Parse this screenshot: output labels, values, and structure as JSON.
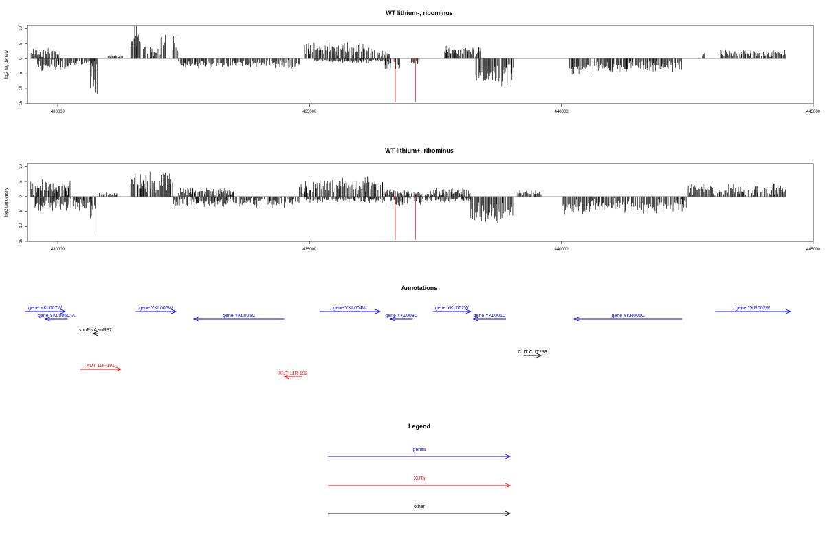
{
  "chart_data": [
    {
      "type": "bar",
      "title": "WT lithium-, ribominus",
      "xlabel": "",
      "ylabel": "log2 tag density",
      "xlim": [
        429400,
        445000
      ],
      "ylim": [
        -15,
        11
      ],
      "xticks": [
        430000,
        435000,
        440000,
        445000
      ],
      "yticks": [
        10,
        5,
        0,
        -5,
        -10,
        -15
      ],
      "grid": false,
      "baseline_color": "#888888",
      "bar_color": "#000000",
      "highlight_color": "#b22222",
      "segments": [
        {
          "x0": 429450,
          "x1": 430050,
          "y": 2.5,
          "strand": 1,
          "var": 1.0
        },
        {
          "x0": 429600,
          "x1": 430300,
          "y": -2.8,
          "strand": -1,
          "var": 1.2
        },
        {
          "x0": 430300,
          "x1": 430750,
          "y": -1.8,
          "strand": -1,
          "var": 0.8
        },
        {
          "x0": 430650,
          "x1": 430800,
          "y": -10.5,
          "strand": -1,
          "var": 3.0
        },
        {
          "x0": 431000,
          "x1": 431300,
          "y": 1.0,
          "strand": 1,
          "var": 0.5
        },
        {
          "x0": 431450,
          "x1": 431650,
          "y": 8.0,
          "strand": 1,
          "var": 1.5
        },
        {
          "x0": 431700,
          "x1": 432050,
          "y": 3.2,
          "strand": 1,
          "var": 1.0
        },
        {
          "x0": 432050,
          "x1": 432200,
          "y": 7.5,
          "strand": 1,
          "var": 2.0
        },
        {
          "x0": 432250,
          "x1": 432400,
          "y": 6.8,
          "strand": 1,
          "var": 1.2
        },
        {
          "x0": 432400,
          "x1": 434800,
          "y": -2.2,
          "strand": -1,
          "var": 1.0
        },
        {
          "x0": 434900,
          "x1": 436300,
          "y": 3.8,
          "strand": 1,
          "var": 1.2
        },
        {
          "x0": 435100,
          "x1": 436500,
          "y": -1.0,
          "strand": -1,
          "var": 0.6
        },
        {
          "x0": 436350,
          "x1": 436600,
          "y": 2.0,
          "strand": 1,
          "var": 0.6
        },
        {
          "x0": 436500,
          "x1": 436800,
          "y": -2.5,
          "strand": -1,
          "var": 1.0
        },
        {
          "x0": 437000,
          "x1": 437200,
          "y": -1.5,
          "strand": -1,
          "var": 0.6
        },
        {
          "x0": 437650,
          "x1": 438400,
          "y": 2.8,
          "strand": 1,
          "var": 1.0
        },
        {
          "x0": 438300,
          "x1": 439050,
          "y": -6.5,
          "strand": -1,
          "var": 1.5
        },
        {
          "x0": 440150,
          "x1": 442400,
          "y": -3.5,
          "strand": -1,
          "var": 1.2
        },
        {
          "x0": 442800,
          "x1": 442850,
          "y": 2.5,
          "strand": 1,
          "var": 0.3
        },
        {
          "x0": 443150,
          "x1": 444450,
          "y": 2.0,
          "strand": 1,
          "var": 1.0
        }
      ],
      "highlights": [
        {
          "x": 436700,
          "y": -14.5
        },
        {
          "x": 437100,
          "y": -14.5
        }
      ]
    },
    {
      "type": "bar",
      "title": "WT lithium+, ribominus",
      "xlabel": "",
      "ylabel": "log2 tag density",
      "xlim": [
        429400,
        445000
      ],
      "ylim": [
        -15,
        11
      ],
      "xticks": [
        430000,
        435000,
        440000,
        445000
      ],
      "yticks": [
        10,
        5,
        0,
        -5,
        -10,
        -15
      ],
      "grid": false,
      "baseline_color": "#888888",
      "bar_color": "#000000",
      "highlight_color": "#b22222",
      "segments": [
        {
          "x0": 429450,
          "x1": 430250,
          "y": 3.8,
          "strand": 1,
          "var": 1.5
        },
        {
          "x0": 429550,
          "x1": 430700,
          "y": -3.2,
          "strand": -1,
          "var": 1.5
        },
        {
          "x0": 430650,
          "x1": 430800,
          "y": -11.0,
          "strand": -1,
          "var": 3.0
        },
        {
          "x0": 430800,
          "x1": 431200,
          "y": 1.0,
          "strand": 1,
          "var": 0.5
        },
        {
          "x0": 431450,
          "x1": 432300,
          "y": 6.0,
          "strand": 1,
          "var": 2.0
        },
        {
          "x0": 432300,
          "x1": 434800,
          "y": -2.5,
          "strand": -1,
          "var": 1.2
        },
        {
          "x0": 432400,
          "x1": 433500,
          "y": 2.0,
          "strand": 1,
          "var": 1.0
        },
        {
          "x0": 434800,
          "x1": 436500,
          "y": 4.5,
          "strand": 1,
          "var": 1.5
        },
        {
          "x0": 434900,
          "x1": 436500,
          "y": -1.5,
          "strand": -1,
          "var": 0.8
        },
        {
          "x0": 436500,
          "x1": 437500,
          "y": 1.5,
          "strand": 1,
          "var": 0.8
        },
        {
          "x0": 436600,
          "x1": 437200,
          "y": -2.5,
          "strand": -1,
          "var": 1.0
        },
        {
          "x0": 437500,
          "x1": 438200,
          "y": 2.0,
          "strand": 1,
          "var": 1.0
        },
        {
          "x0": 437200,
          "x1": 438200,
          "y": -1.5,
          "strand": -1,
          "var": 0.7
        },
        {
          "x0": 438200,
          "x1": 439050,
          "y": -7.0,
          "strand": -1,
          "var": 1.8
        },
        {
          "x0": 439100,
          "x1": 439600,
          "y": 1.5,
          "strand": 1,
          "var": 0.5
        },
        {
          "x0": 440000,
          "x1": 442500,
          "y": -4.0,
          "strand": -1,
          "var": 1.5
        },
        {
          "x0": 442500,
          "x1": 444450,
          "y": 3.0,
          "strand": 1,
          "var": 1.2
        }
      ],
      "highlights": [
        {
          "x": 436700,
          "y": -14.5
        },
        {
          "x": 437100,
          "y": -14.5
        }
      ]
    }
  ],
  "annotations": {
    "title": "Annotations",
    "items": [
      {
        "label": "gene YKL007W",
        "type": "gene",
        "dir": 1,
        "x0": 429350,
        "x1": 430150,
        "row": 0
      },
      {
        "label": "gene YKL006C-A",
        "type": "gene",
        "dir": -1,
        "x0": 429750,
        "x1": 430200,
        "row": 1
      },
      {
        "label": "gene YKL006W",
        "type": "gene",
        "dir": 1,
        "x0": 431550,
        "x1": 432350,
        "row": 0
      },
      {
        "label": "gene YKL005C",
        "type": "gene",
        "dir": -1,
        "x0": 432700,
        "x1": 434500,
        "row": 1
      },
      {
        "label": "gene YKL004W",
        "type": "gene",
        "dir": 1,
        "x0": 435200,
        "x1": 436400,
        "row": 0
      },
      {
        "label": "gene YKL003C",
        "type": "gene",
        "dir": -1,
        "x0": 436600,
        "x1": 437050,
        "row": 1
      },
      {
        "label": "gene YKL002W",
        "type": "gene",
        "dir": 1,
        "x0": 437450,
        "x1": 438200,
        "row": 0
      },
      {
        "label": "gene YKL001C",
        "type": "gene",
        "dir": -1,
        "x0": 438250,
        "x1": 438900,
        "row": 1
      },
      {
        "label": "gene YKR001C",
        "type": "gene",
        "dir": -1,
        "x0": 440250,
        "x1": 442400,
        "row": 1
      },
      {
        "label": "gene YKR002W",
        "type": "gene",
        "dir": 1,
        "x0": 443050,
        "x1": 444550,
        "row": 0
      },
      {
        "label": "snoRNA snR87",
        "type": "other",
        "dir": -1,
        "x0": 430700,
        "x1": 430800,
        "row": 2
      },
      {
        "label": "CUT CUT238",
        "type": "other",
        "dir": 1,
        "x0": 439250,
        "x1": 439600,
        "row": 3
      },
      {
        "label": "XUT 11F-191",
        "type": "xut",
        "dir": 1,
        "x0": 430450,
        "x1": 431250,
        "row": 4
      },
      {
        "label": "XUT 11R-192",
        "type": "xut",
        "dir": -1,
        "x0": 434500,
        "x1": 434850,
        "row": 5
      }
    ]
  },
  "legend": {
    "title": "Legend",
    "entries": [
      {
        "label": "genes",
        "type": "gene"
      },
      {
        "label": "XUTs",
        "type": "xut"
      },
      {
        "label": "other",
        "type": "other"
      }
    ]
  },
  "colors": {
    "gene": "#0000ff",
    "xut": "#ff0000",
    "other": "#000000"
  }
}
